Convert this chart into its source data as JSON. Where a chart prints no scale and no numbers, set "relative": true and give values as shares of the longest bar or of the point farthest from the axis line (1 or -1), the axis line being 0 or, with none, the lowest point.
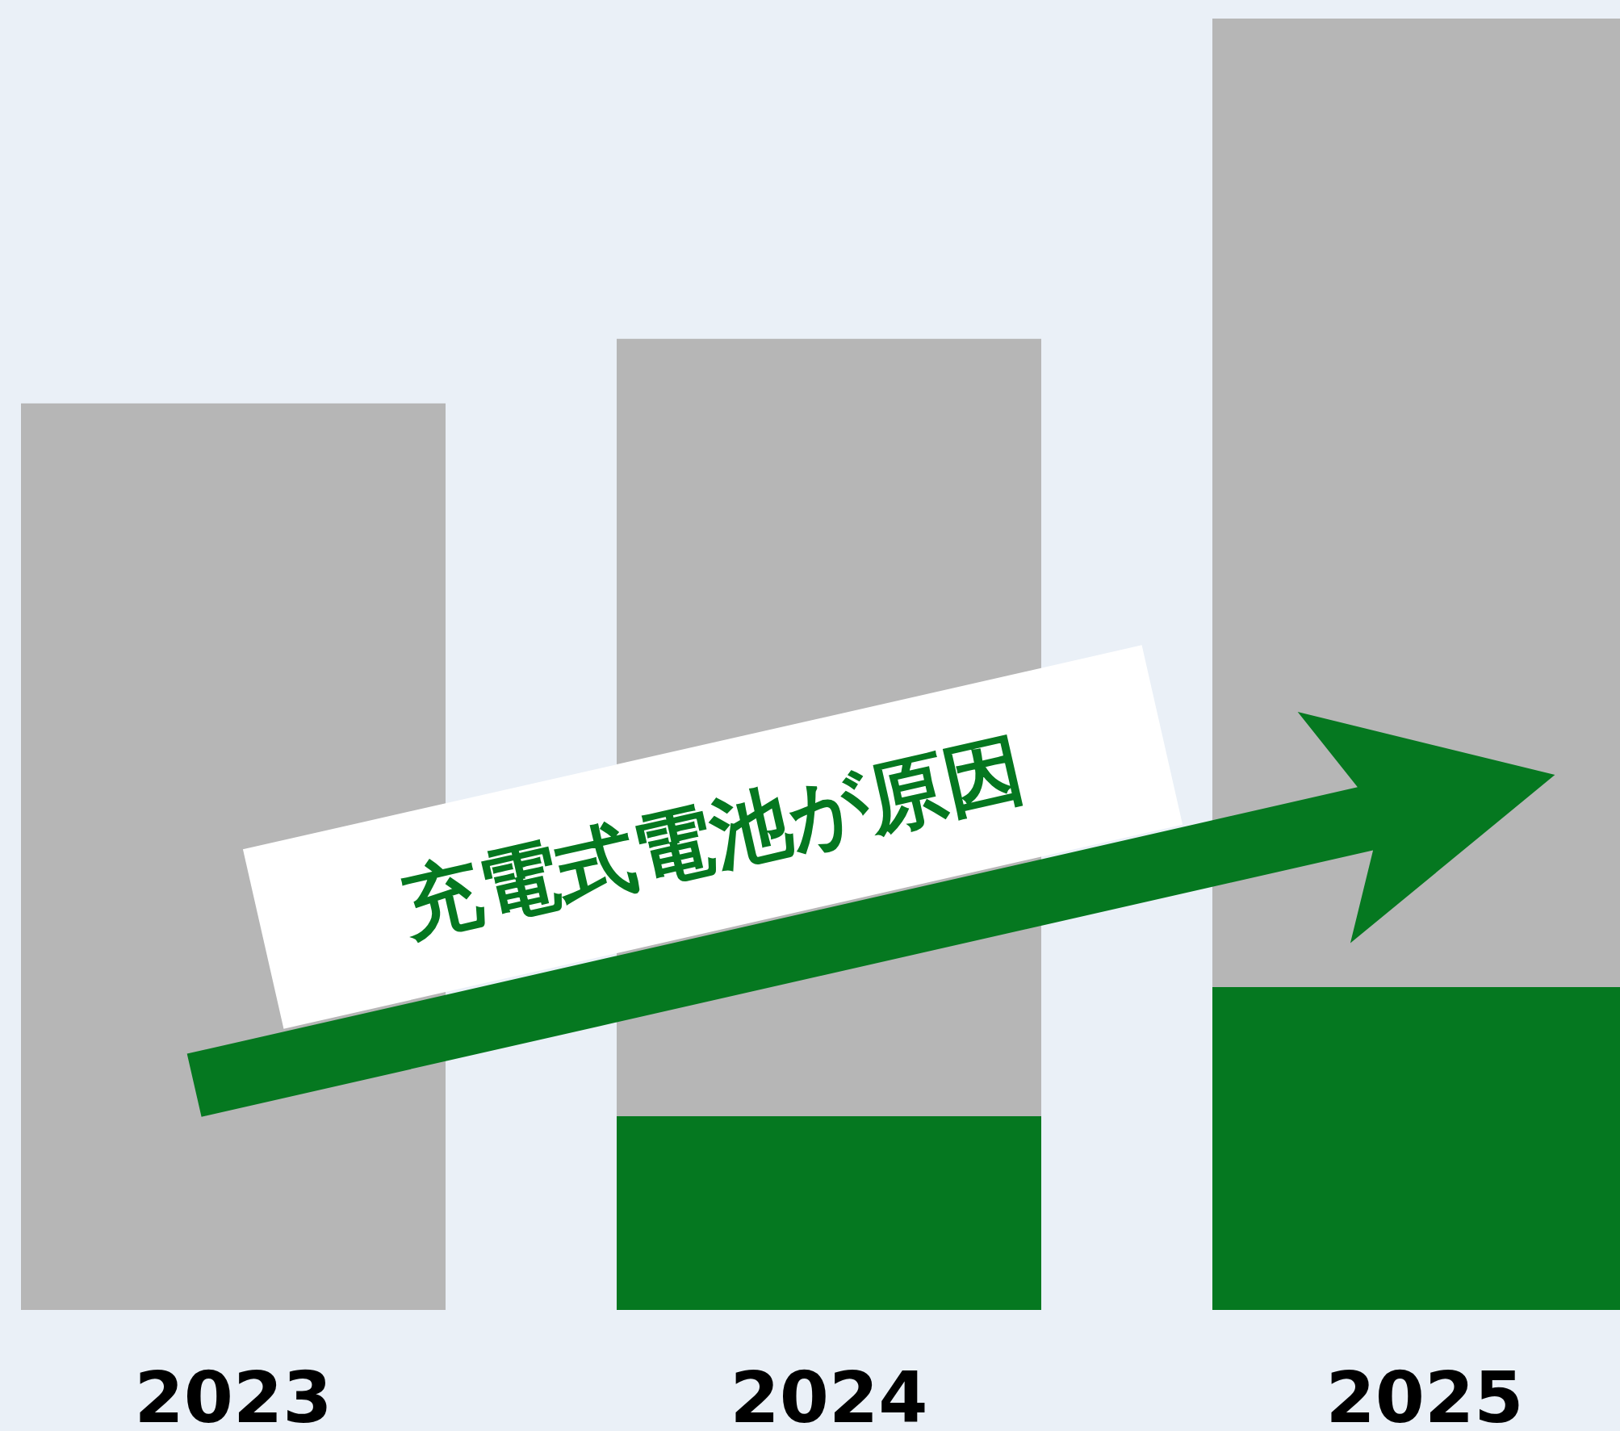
{
  "chart_data": {
    "type": "bar",
    "stacked": true,
    "relative": true,
    "categories": [
      "2023",
      "2024",
      "2025"
    ],
    "series": [
      {
        "color": "#057820",
        "values": [
          0,
          0.15,
          0.25
        ]
      },
      {
        "color": "#b6b6b6",
        "values": [
          0.702,
          0.602,
          0.75
        ]
      }
    ],
    "annotations": [
      "充電式電池が原因"
    ]
  }
}
